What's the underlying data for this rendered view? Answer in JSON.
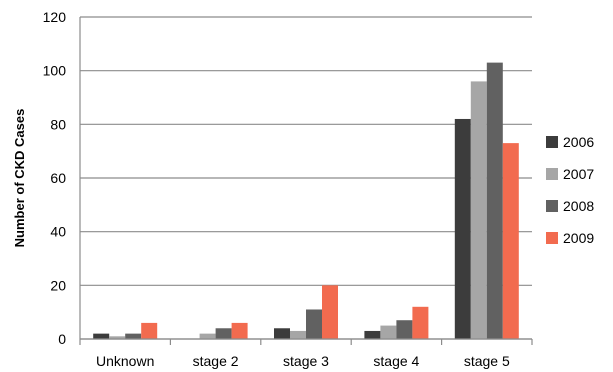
{
  "chart_data": {
    "type": "bar",
    "title": "",
    "xlabel": "",
    "ylabel": "Number of CKD Cases",
    "ylim": [
      0,
      120
    ],
    "yticks": [
      0,
      20,
      40,
      60,
      80,
      100,
      120
    ],
    "grid": true,
    "legend_position": "right",
    "categories": [
      "Unknown",
      "stage 2",
      "stage 3",
      "stage 4",
      "stage 5"
    ],
    "series": [
      {
        "name": "2006",
        "color": "#3c3c3c",
        "values": [
          2,
          0,
          4,
          3,
          82
        ]
      },
      {
        "name": "2007",
        "color": "#a6a6a6",
        "values": [
          1,
          2,
          3,
          5,
          96
        ]
      },
      {
        "name": "2008",
        "color": "#616161",
        "values": [
          2,
          4,
          11,
          7,
          103
        ]
      },
      {
        "name": "2009",
        "color": "#f26b4f",
        "values": [
          6,
          6,
          20,
          12,
          73
        ]
      }
    ]
  }
}
